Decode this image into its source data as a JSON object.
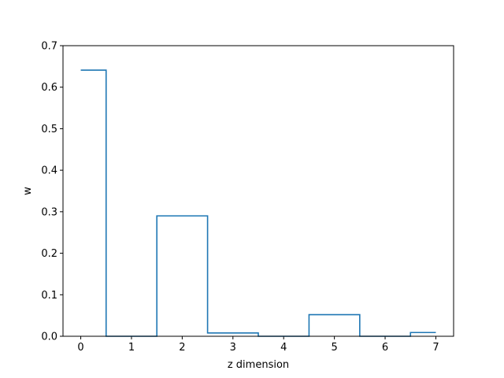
{
  "chart_data": {
    "type": "line",
    "style": "step",
    "title": "",
    "xlabel": "z dimension",
    "ylabel": "w",
    "xlim": [
      -0.35,
      7.35
    ],
    "ylim": [
      0,
      0.7
    ],
    "grid": false,
    "x_ticks": [
      0,
      1,
      2,
      3,
      4,
      5,
      6,
      7
    ],
    "x_tick_labels": [
      "0",
      "1",
      "2",
      "3",
      "4",
      "5",
      "6",
      "7"
    ],
    "y_ticks": [
      0.0,
      0.1,
      0.2,
      0.3,
      0.4,
      0.5,
      0.6,
      0.7
    ],
    "y_tick_labels": [
      "0.0",
      "0.1",
      "0.2",
      "0.3",
      "0.4",
      "0.5",
      "0.6",
      "0.7"
    ],
    "series": [
      {
        "color": "#1f77b4",
        "x": [
          0,
          1,
          2,
          3,
          4,
          5,
          6,
          7
        ],
        "values": [
          0.641,
          0.0,
          0.29,
          0.008,
          0.0,
          0.052,
          0.0,
          0.009
        ]
      }
    ]
  }
}
